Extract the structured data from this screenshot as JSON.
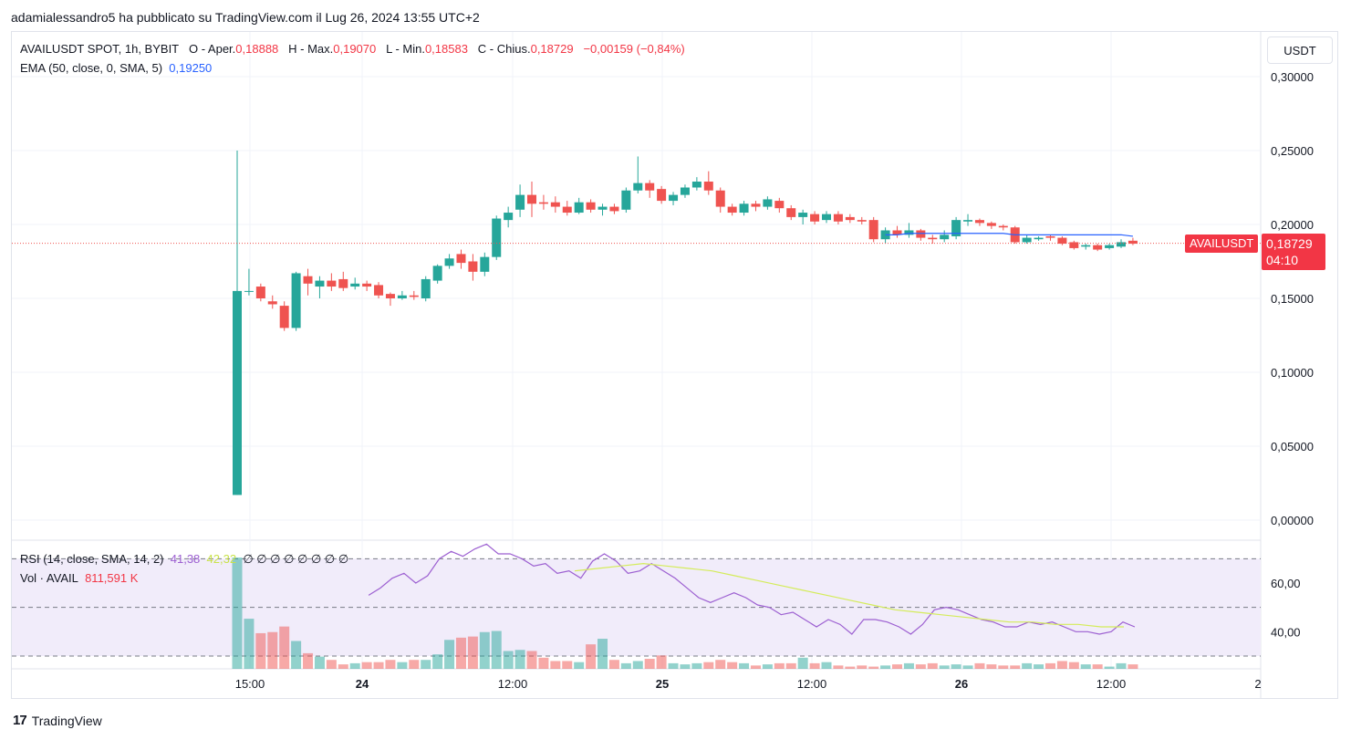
{
  "caption": "adamialessandro5 ha pubblicato su TradingView.com il Lug 26, 2024 13:55 UTC+2",
  "legend": {
    "symbol": "AVAILUSDT SPOT, 1h, BYBIT",
    "open_label": "O - Aper.",
    "open": "0,18888",
    "high_label": "H - Max.",
    "high": "0,19070",
    "low_label": "L - Min.",
    "low": "0,18583",
    "close_label": "C - Chius.",
    "close": "0,18729",
    "change": "−0,00159 (−0,84%)",
    "ema_label": "EMA (50, close, 0, SMA, 5)",
    "ema_value": "0,19250",
    "rsi_label": "RSI (14, close, SMA, 14, 2)",
    "rsi_value": "41,38",
    "rsi_ma_value": "42,32",
    "rsi_extra": "∅ ∅ ∅ ∅ ∅ ∅ ∅ ∅",
    "vol_label": "Vol · AVAIL",
    "vol_value": "811,591 K"
  },
  "unit_button": "USDT",
  "price_badge": {
    "symbol": "AVAILUSDT",
    "price": "0,18729",
    "countdown": "04:10"
  },
  "footer_brand": "TradingView",
  "colors": {
    "up": "#26a69a",
    "down": "#ef5350",
    "ema": "#2962ff",
    "rsi": "#9c5fd1",
    "rsi_ma": "#d4ec5a",
    "band": "#f1ecfa"
  },
  "chart_data": {
    "type": "candlestick",
    "interval": "1h",
    "price_axis": {
      "ticks": [
        0.3,
        0.25,
        0.2,
        0.15,
        0.1,
        0.05,
        0.0
      ],
      "tick_labels": [
        "0,30000",
        "0,25000",
        "0,20000",
        "0,15000",
        "0,10000",
        "0,05000",
        "0,00000"
      ]
    },
    "rsi_axis": {
      "ticks": [
        60,
        40
      ],
      "tick_labels": [
        "60,00",
        "40,00"
      ],
      "bands": [
        70,
        50,
        30
      ]
    },
    "x_ticks": [
      "15:00",
      "24",
      "12:00",
      "25",
      "12:00",
      "26",
      "12:00",
      "2"
    ],
    "last_price": 0.18729,
    "candles": [
      [
        0.017,
        0.155,
        0.25,
        0.017
      ],
      [
        0.155,
        0.155,
        0.17,
        0.152
      ],
      [
        0.158,
        0.15,
        0.16,
        0.148
      ],
      [
        0.148,
        0.146,
        0.152,
        0.143
      ],
      [
        0.145,
        0.13,
        0.148,
        0.128
      ],
      [
        0.13,
        0.167,
        0.168,
        0.128
      ],
      [
        0.165,
        0.16,
        0.17,
        0.152
      ],
      [
        0.158,
        0.162,
        0.165,
        0.15
      ],
      [
        0.162,
        0.158,
        0.167,
        0.155
      ],
      [
        0.163,
        0.157,
        0.168,
        0.155
      ],
      [
        0.158,
        0.16,
        0.164,
        0.156
      ],
      [
        0.16,
        0.158,
        0.162,
        0.155
      ],
      [
        0.159,
        0.152,
        0.161,
        0.15
      ],
      [
        0.153,
        0.15,
        0.154,
        0.145
      ],
      [
        0.15,
        0.152,
        0.155,
        0.149
      ],
      [
        0.152,
        0.151,
        0.155,
        0.149
      ],
      [
        0.15,
        0.163,
        0.165,
        0.148
      ],
      [
        0.162,
        0.172,
        0.173,
        0.16
      ],
      [
        0.172,
        0.177,
        0.18,
        0.17
      ],
      [
        0.18,
        0.174,
        0.183,
        0.17
      ],
      [
        0.175,
        0.168,
        0.18,
        0.162
      ],
      [
        0.168,
        0.178,
        0.181,
        0.165
      ],
      [
        0.178,
        0.204,
        0.206,
        0.176
      ],
      [
        0.203,
        0.208,
        0.212,
        0.198
      ],
      [
        0.21,
        0.22,
        0.227,
        0.205
      ],
      [
        0.22,
        0.214,
        0.229,
        0.205
      ],
      [
        0.215,
        0.214,
        0.22,
        0.21
      ],
      [
        0.215,
        0.212,
        0.219,
        0.208
      ],
      [
        0.212,
        0.208,
        0.216,
        0.206
      ],
      [
        0.208,
        0.215,
        0.218,
        0.207
      ],
      [
        0.215,
        0.21,
        0.217,
        0.208
      ],
      [
        0.21,
        0.212,
        0.214,
        0.206
      ],
      [
        0.212,
        0.209,
        0.214,
        0.207
      ],
      [
        0.21,
        0.223,
        0.225,
        0.208
      ],
      [
        0.223,
        0.228,
        0.246,
        0.221
      ],
      [
        0.228,
        0.223,
        0.23,
        0.218
      ],
      [
        0.224,
        0.216,
        0.226,
        0.214
      ],
      [
        0.216,
        0.22,
        0.222,
        0.213
      ],
      [
        0.22,
        0.225,
        0.227,
        0.218
      ],
      [
        0.225,
        0.229,
        0.232,
        0.223
      ],
      [
        0.229,
        0.223,
        0.236,
        0.22
      ],
      [
        0.223,
        0.212,
        0.225,
        0.208
      ],
      [
        0.212,
        0.208,
        0.214,
        0.206
      ],
      [
        0.208,
        0.214,
        0.216,
        0.206
      ],
      [
        0.214,
        0.212,
        0.216,
        0.209
      ],
      [
        0.212,
        0.217,
        0.219,
        0.21
      ],
      [
        0.216,
        0.211,
        0.218,
        0.208
      ],
      [
        0.211,
        0.205,
        0.213,
        0.203
      ],
      [
        0.205,
        0.208,
        0.21,
        0.2
      ],
      [
        0.207,
        0.202,
        0.209,
        0.2
      ],
      [
        0.203,
        0.207,
        0.209,
        0.201
      ],
      [
        0.207,
        0.202,
        0.209,
        0.2
      ],
      [
        0.205,
        0.203,
        0.207,
        0.201
      ],
      [
        0.203,
        0.202,
        0.205,
        0.2
      ],
      [
        0.203,
        0.19,
        0.205,
        0.188
      ],
      [
        0.19,
        0.196,
        0.198,
        0.187
      ],
      [
        0.196,
        0.193,
        0.199,
        0.191
      ],
      [
        0.193,
        0.196,
        0.201,
        0.191
      ],
      [
        0.196,
        0.191,
        0.197,
        0.189
      ],
      [
        0.191,
        0.19,
        0.193,
        0.187
      ],
      [
        0.19,
        0.193,
        0.196,
        0.188
      ],
      [
        0.192,
        0.203,
        0.205,
        0.19
      ],
      [
        0.202,
        0.203,
        0.207,
        0.199
      ],
      [
        0.203,
        0.201,
        0.204,
        0.199
      ],
      [
        0.201,
        0.199,
        0.202,
        0.197
      ],
      [
        0.199,
        0.198,
        0.2,
        0.196
      ],
      [
        0.198,
        0.188,
        0.199,
        0.187
      ],
      [
        0.188,
        0.191,
        0.193,
        0.187
      ],
      [
        0.19,
        0.191,
        0.192,
        0.189
      ],
      [
        0.192,
        0.191,
        0.193,
        0.189
      ],
      [
        0.191,
        0.187,
        0.192,
        0.186
      ],
      [
        0.188,
        0.184,
        0.189,
        0.183
      ],
      [
        0.185,
        0.186,
        0.187,
        0.183
      ],
      [
        0.186,
        0.183,
        0.187,
        0.182
      ],
      [
        0.184,
        0.186,
        0.187,
        0.183
      ],
      [
        0.185,
        0.188,
        0.19,
        0.184
      ],
      [
        0.189,
        0.187,
        0.191,
        0.186
      ]
    ],
    "ema": [
      0.193,
      0.193,
      0.194,
      0.194,
      0.194,
      0.194,
      0.194,
      0.194,
      0.194,
      0.194,
      0.194,
      0.193,
      0.193,
      0.193,
      0.193,
      0.193,
      0.193,
      0.193,
      0.193,
      0.193,
      0.193,
      0.192
    ],
    "rsi": [
      55,
      58,
      62,
      64,
      60,
      63,
      70,
      73,
      71,
      74,
      76,
      72,
      72,
      70,
      67,
      68,
      64,
      65,
      62,
      69,
      72,
      69,
      64,
      65,
      68,
      65,
      62,
      58,
      54,
      52,
      54,
      56,
      54,
      51,
      50,
      47,
      48,
      45,
      42,
      45,
      43,
      39,
      45,
      45,
      44,
      42,
      39,
      43,
      49,
      50,
      49,
      47,
      45,
      44,
      42,
      42,
      44,
      43,
      44,
      42,
      40,
      40,
      39,
      40,
      44,
      42
    ],
    "rsi_ma": [
      65,
      66,
      67,
      68,
      67,
      66,
      65,
      63,
      61,
      59,
      57,
      55,
      53,
      51,
      49,
      48,
      47,
      46,
      45,
      44,
      44,
      43,
      43,
      42,
      42
    ],
    "volume": [
      100,
      45,
      32,
      33,
      38,
      25,
      14,
      11,
      8,
      4,
      5,
      6,
      6,
      8,
      6,
      8,
      8,
      13,
      26,
      28,
      29,
      33,
      34,
      16,
      17,
      16,
      10,
      7,
      7,
      6,
      22,
      27,
      8,
      5,
      7,
      9,
      12,
      5,
      4,
      5,
      6,
      8,
      6,
      5,
      3,
      4,
      5,
      5,
      10,
      5,
      6,
      3,
      2,
      3,
      2,
      3,
      4,
      5,
      4,
      5,
      3,
      4,
      3,
      5,
      4,
      3,
      3,
      5,
      4,
      5,
      7,
      6,
      4,
      4,
      2,
      5,
      4
    ]
  }
}
